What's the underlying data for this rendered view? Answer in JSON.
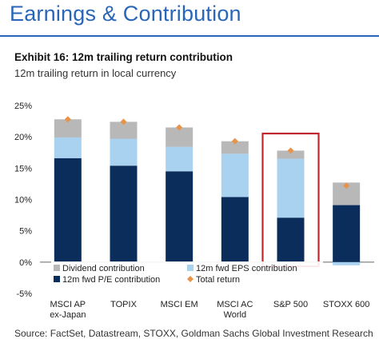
{
  "page": {
    "header_title": "Earnings & Contribution",
    "exhibit_title": "Exhibit 16: 12m trailing return contribution",
    "exhibit_subtitle": "12m trailing return in local currency",
    "source": "Source: FactSet, Datastream, STOXX, Goldman Sachs Global Investment Research",
    "colors": {
      "header_accent": "#2a66b8",
      "pe_contribution": "#0b2d5b",
      "eps_contribution": "#a9d1f0",
      "dividend_contribution": "#b8b8b8",
      "total_return": "#e8934a",
      "highlight_box": "#c0262d"
    }
  },
  "chart_data": {
    "type": "bar",
    "stacked": true,
    "categories": [
      [
        "MSCI AP",
        "ex-Japan"
      ],
      [
        "TOPIX"
      ],
      [
        "MSCI EM"
      ],
      [
        "MSCI AC",
        "World"
      ],
      [
        "S&P 500"
      ],
      [
        "STOXX 600"
      ]
    ],
    "series": [
      {
        "name": "12m fwd P/E contribution",
        "key": "pe",
        "values": [
          16.6,
          15.4,
          14.5,
          10.4,
          7.1,
          9.1
        ]
      },
      {
        "name": "12m fwd EPS contribution",
        "key": "eps",
        "values": [
          3.3,
          4.3,
          3.9,
          6.9,
          9.4,
          -0.5
        ]
      },
      {
        "name": "Dividend contribution",
        "key": "dividend",
        "values": [
          2.9,
          2.7,
          3.1,
          2.0,
          1.3,
          3.6
        ]
      }
    ],
    "total_return": {
      "name": "Total return",
      "values": [
        22.8,
        22.4,
        21.5,
        19.3,
        17.8,
        12.2
      ]
    },
    "ylim": [
      -5,
      25
    ],
    "yticks": [
      "-5%",
      "0%",
      "5%",
      "10%",
      "15%",
      "20%",
      "25%"
    ],
    "ytick_values": [
      -5,
      0,
      5,
      10,
      15,
      20,
      25
    ],
    "legend": {
      "placement": "bottom-inside",
      "entries": [
        "Dividend contribution",
        "12m fwd EPS contribution",
        "12m fwd P/E contribution",
        "Total return"
      ]
    },
    "highlight": "S&P 500",
    "grid": false
  }
}
